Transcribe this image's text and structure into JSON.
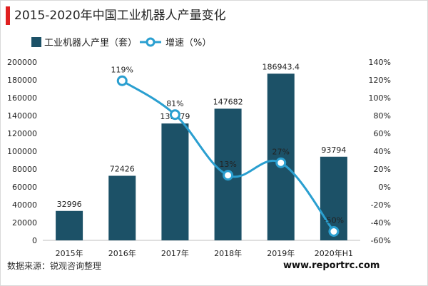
{
  "header": {
    "title": "2015-2020年中国工业机器人产量变化"
  },
  "footer": {
    "source": "数据来源：锐观咨询整理",
    "website": "www.reportrc.com"
  },
  "colors": {
    "bar": "#1c5167",
    "line": "#2a9fd0",
    "title_accent": "#e02020"
  },
  "chart_data": {
    "type": "bar",
    "title": "2015-2020年中国工业机器人产量变化",
    "categories": [
      "2015年",
      "2016年",
      "2017年",
      "2018年",
      "2019年",
      "2020年H1"
    ],
    "series": [
      {
        "name": "工业机器人产里（套）",
        "type": "bar",
        "axis": "left",
        "values": [
          32996,
          72426,
          131079,
          147682,
          186943.4,
          93794
        ],
        "value_labels": [
          "32996",
          "72426",
          "131079",
          "147682",
          "186943.4",
          "93794"
        ]
      },
      {
        "name": "增速（%）",
        "type": "line",
        "axis": "right",
        "smooth": true,
        "values": [
          null,
          119,
          81,
          13,
          27,
          -50
        ],
        "value_labels": [
          "",
          "119%",
          "81%",
          "13%",
          "27%",
          "-50%"
        ]
      }
    ],
    "y_left": {
      "range": [
        0,
        200000
      ],
      "ticks": [
        "0",
        "20000",
        "40000",
        "60000",
        "80000",
        "100000",
        "120000",
        "140000",
        "160000",
        "180000",
        "200000"
      ]
    },
    "y_right": {
      "range": [
        -60,
        140
      ],
      "ticks": [
        "-60%",
        "-40%",
        "-20%",
        "0%",
        "20%",
        "40%",
        "60%",
        "80%",
        "100%",
        "120%",
        "140%"
      ]
    },
    "grid": false,
    "legend": "top-left"
  }
}
